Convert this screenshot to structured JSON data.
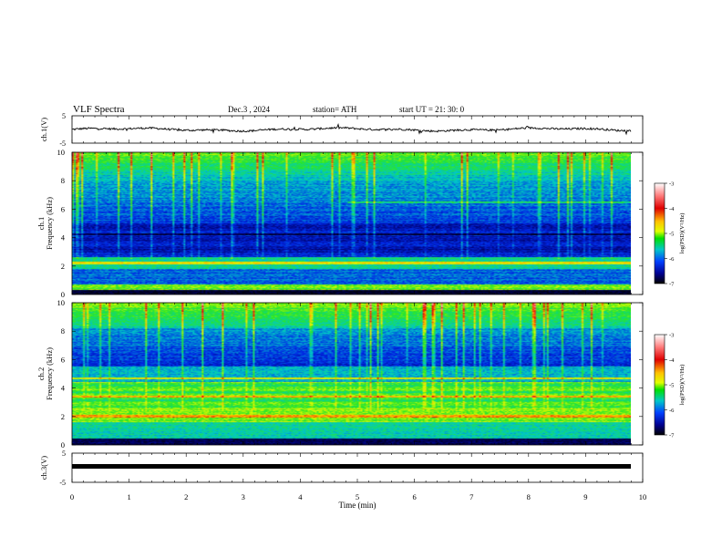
{
  "header": {
    "title": "VLF  Spectra",
    "date": "Dec.3   , 2024",
    "station": "station= ATH",
    "start": "start  UT  =   21: 30: 0"
  },
  "colorbar": {
    "label": "log(PSD)(V²/Hz)",
    "ticks": [
      "-3",
      "-4",
      "-5",
      "-6",
      "-7"
    ],
    "range": [
      -7,
      -3
    ]
  },
  "chart_data": [
    {
      "type": "line",
      "name": "ch1-waveform",
      "ylabel": "ch.1(V)",
      "yticks": [
        "5",
        "-5"
      ],
      "ylim": [
        -5,
        5
      ],
      "xlim": [
        0,
        10
      ],
      "series": [
        {
          "level": 0
        }
      ]
    },
    {
      "type": "heatmap",
      "name": "ch1-spectrogram",
      "ylabel": "ch.1\nFrequency  (kHz)",
      "yticks": [
        "10",
        "8",
        "6",
        "4",
        "2",
        "0"
      ],
      "ylim": [
        0,
        10
      ],
      "xlim": [
        0,
        9.8
      ],
      "value_range": [
        -7,
        -3
      ]
    },
    {
      "type": "heatmap",
      "name": "ch2-spectrogram",
      "ylabel": "ch.2\nFrequency  (kHz)",
      "yticks": [
        "10",
        "8",
        "6",
        "4",
        "2",
        "0"
      ],
      "ylim": [
        0,
        10
      ],
      "xlim": [
        0,
        9.8
      ],
      "value_range": [
        -7,
        -3
      ]
    },
    {
      "type": "line",
      "name": "ch3-waveform",
      "ylabel": "ch.3(V)",
      "yticks": [
        "5",
        "-5"
      ],
      "ylim": [
        -5,
        5
      ],
      "xlim": [
        0,
        10
      ],
      "series": [
        {
          "level": 0
        }
      ]
    }
  ],
  "xaxis": {
    "label": "Time  (min)",
    "ticks": [
      "0",
      "1",
      "2",
      "3",
      "4",
      "5",
      "6",
      "7",
      "8",
      "9",
      "10"
    ],
    "range": [
      0,
      10
    ]
  }
}
